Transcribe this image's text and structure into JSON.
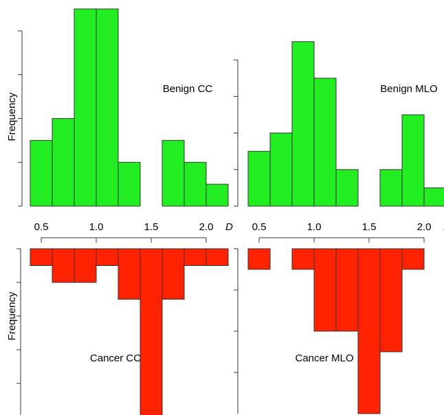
{
  "chart_data": [
    {
      "type": "histogram",
      "title": "Benign CC",
      "y_label": "Frequency",
      "x_label": "D",
      "bins": [
        0.4,
        0.6,
        0.8,
        1.0,
        1.2,
        1.4,
        1.6,
        1.8,
        2.0,
        2.2
      ],
      "values": [
        3,
        4,
        9,
        9,
        2,
        0,
        3,
        2,
        1
      ],
      "color": "#22ee22",
      "xlim": [
        0.4,
        2.2
      ],
      "xticks": [
        0.5,
        {
          "value": 1,
          "label": "1.0"
        },
        1.5,
        {
          "value": 2,
          "label": "2.0"
        }
      ],
      "ylim": [
        0,
        9
      ],
      "yticks": [
        0,
        2,
        4,
        6,
        8
      ],
      "inverted": false
    },
    {
      "type": "histogram",
      "title": "Benign MLO",
      "x_label": "D",
      "bins": [
        0.4,
        0.6,
        0.8,
        1.0,
        1.2,
        1.4,
        1.6,
        1.8,
        2.0,
        2.2
      ],
      "values": [
        3,
        4,
        9,
        7,
        2,
        0,
        2,
        5,
        1
      ],
      "color": "#22ee22",
      "xlim": [
        0.4,
        2.2
      ],
      "xticks": [
        0.5,
        {
          "value": 1,
          "label": "1.0"
        },
        1.5,
        {
          "value": 2,
          "label": "2.0"
        }
      ],
      "ylim": [
        0,
        10
      ],
      "yticks": [
        0,
        2,
        4,
        6,
        8
      ],
      "inverted": false
    },
    {
      "type": "histogram",
      "title": "Cancer CC",
      "y_label": "Frequency",
      "bins": [
        0.4,
        0.6,
        0.8,
        1.0,
        1.2,
        1.4,
        1.6,
        1.8,
        2.0,
        2.2
      ],
      "values": [
        1,
        2,
        2,
        1,
        3,
        10,
        3,
        1,
        1
      ],
      "color": "#ff2200",
      "xlim": [
        0.4,
        2.2
      ],
      "ylim": [
        0,
        10
      ],
      "yticks": [
        0,
        2,
        4,
        6,
        8
      ],
      "inverted": true
    },
    {
      "type": "histogram",
      "title": "Cancer MLO",
      "bins": [
        0.4,
        0.6,
        0.8,
        1.0,
        1.2,
        1.4,
        1.6,
        1.8,
        2.0,
        2.2
      ],
      "values": [
        1,
        0,
        1,
        4,
        4,
        8,
        5,
        1,
        0
      ],
      "color": "#ff2200",
      "xlim": [
        0.4,
        2.2
      ],
      "ylim": [
        0,
        8
      ],
      "yticks": [
        0,
        2,
        4,
        6
      ],
      "inverted": true
    }
  ]
}
